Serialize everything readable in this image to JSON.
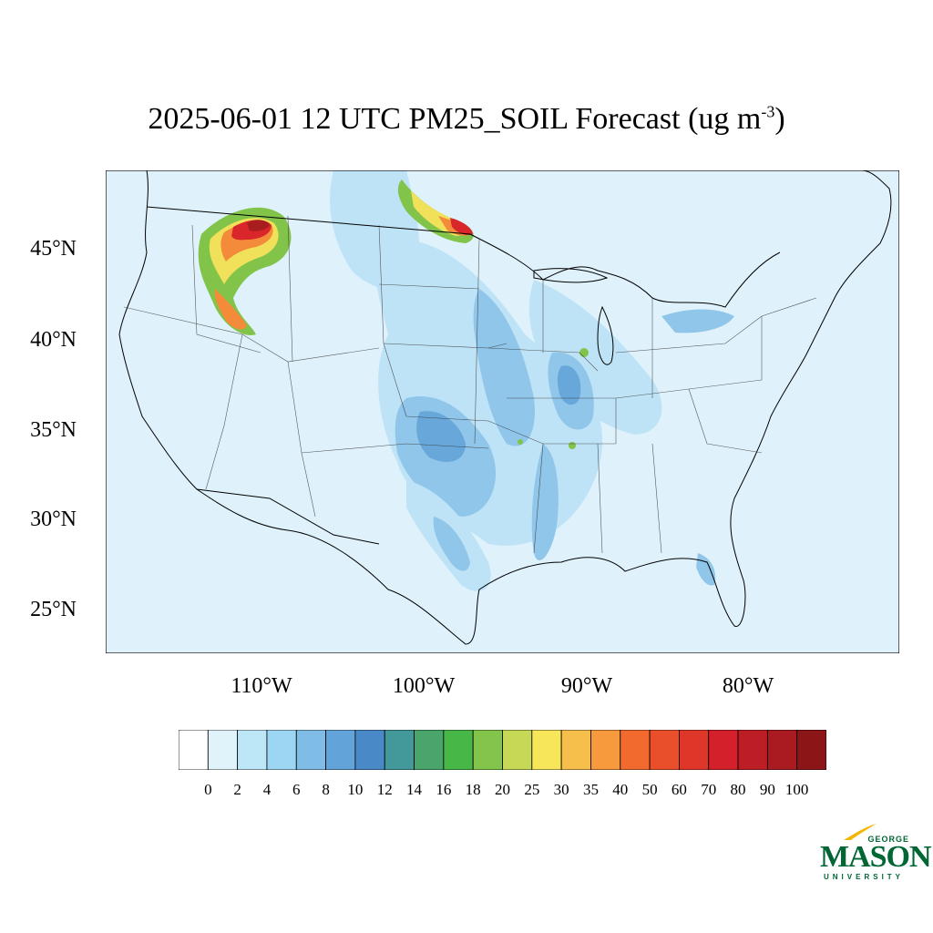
{
  "title": {
    "main": "2025-06-01 12 UTC PM25_SOIL Forecast (ug m",
    "sup": "-3",
    "close": ")"
  },
  "lat_labels": [
    "45°N",
    "40°N",
    "35°N",
    "30°N",
    "25°N"
  ],
  "lon_labels": [
    "110°W",
    "100°W",
    "90°W",
    "80°W"
  ],
  "colorbar": {
    "labels": [
      "0",
      "2",
      "4",
      "6",
      "8",
      "10",
      "12",
      "14",
      "16",
      "18",
      "20",
      "25",
      "30",
      "35",
      "40",
      "50",
      "60",
      "70",
      "80",
      "90",
      "100"
    ],
    "colors": [
      "#ffffff",
      "#e0f3fb",
      "#bde6f7",
      "#9dd6f3",
      "#7fbde6",
      "#62a3d9",
      "#4a89c8",
      "#43989a",
      "#49a56b",
      "#47b748",
      "#83c44a",
      "#c6d855",
      "#f7e659",
      "#f6bf4c",
      "#f69a3d",
      "#f26a2e",
      "#e94f2a",
      "#de3628",
      "#d3202b",
      "#bd1d25",
      "#a91b20",
      "#8c1518"
    ]
  },
  "logo": {
    "george": "GEORGE",
    "mason": "MASON",
    "university": "UNIVERSITY"
  },
  "map_colors": {
    "background": "#dff2fb",
    "light": "#bfe3f6",
    "mid": "#8fc6ea",
    "dark": "#5d9fd6",
    "green": "#82c44a",
    "yellow": "#f0e05a",
    "orange": "#f38b3a",
    "red": "#d8262a",
    "darkred": "#a81d1d"
  }
}
